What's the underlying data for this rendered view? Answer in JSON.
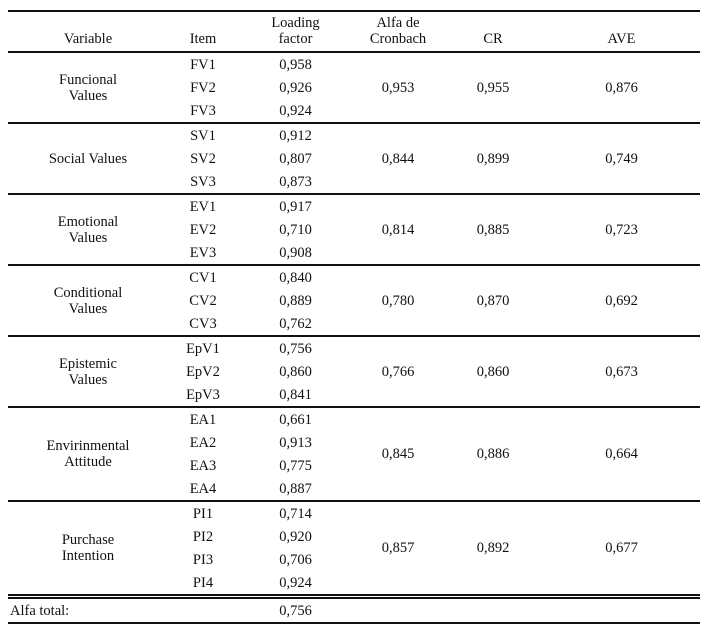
{
  "table": {
    "headers": [
      "Variable",
      "Item",
      "Loading factor",
      "Alfa de Cronbach",
      "CR",
      "AVE"
    ],
    "groups": [
      {
        "variable": "Funcional Values",
        "items": [
          {
            "item": "FV1",
            "loading": "0,958"
          },
          {
            "item": "FV2",
            "loading": "0,926"
          },
          {
            "item": "FV3",
            "loading": "0,924"
          }
        ],
        "alfa_de_cronbach": "0,953",
        "cr": "0,955",
        "ave": "0,876"
      },
      {
        "variable": "Social Values",
        "items": [
          {
            "item": "SV1",
            "loading": "0,912"
          },
          {
            "item": "SV2",
            "loading": "0,807"
          },
          {
            "item": "SV3",
            "loading": "0,873"
          }
        ],
        "alfa_de_cronbach": "0,844",
        "cr": "0,899",
        "ave": "0,749"
      },
      {
        "variable": "Emotional Values",
        "items": [
          {
            "item": "EV1",
            "loading": "0,917"
          },
          {
            "item": "EV2",
            "loading": "0,710"
          },
          {
            "item": "EV3",
            "loading": "0,908"
          }
        ],
        "alfa_de_cronbach": "0,814",
        "cr": "0,885",
        "ave": "0,723"
      },
      {
        "variable": "Conditional Values",
        "items": [
          {
            "item": "CV1",
            "loading": "0,840"
          },
          {
            "item": "CV2",
            "loading": "0,889"
          },
          {
            "item": "CV3",
            "loading": "0,762"
          }
        ],
        "alfa_de_cronbach": "0,780",
        "cr": "0,870",
        "ave": "0,692"
      },
      {
        "variable": "Epistemic Values",
        "items": [
          {
            "item": "EpV1",
            "loading": "0,756"
          },
          {
            "item": "EpV2",
            "loading": "0,860"
          },
          {
            "item": "EpV3",
            "loading": "0,841"
          }
        ],
        "alfa_de_cronbach": "0,766",
        "cr": "0,860",
        "ave": "0,673"
      },
      {
        "variable": "Envirinmental Attitude",
        "items": [
          {
            "item": "EA1",
            "loading": "0,661"
          },
          {
            "item": "EA2",
            "loading": "0,913"
          },
          {
            "item": "EA3",
            "loading": "0,775"
          },
          {
            "item": "EA4",
            "loading": "0,887"
          }
        ],
        "alfa_de_cronbach": "0,845",
        "cr": "0,886",
        "ave": "0,664"
      },
      {
        "variable": "Purchase Intention",
        "items": [
          {
            "item": "PI1",
            "loading": "0,714"
          },
          {
            "item": "PI2",
            "loading": "0,920"
          },
          {
            "item": "PI3",
            "loading": "0,706"
          },
          {
            "item": "PI4",
            "loading": "0,924"
          }
        ],
        "alfa_de_cronbach": "0,857",
        "cr": "0,892",
        "ave": "0,677"
      }
    ],
    "footer": {
      "label": "Alfa total:",
      "value": "0,756"
    },
    "colors": {
      "text": "#111111",
      "rule": "#111111",
      "background": "#ffffff"
    }
  }
}
